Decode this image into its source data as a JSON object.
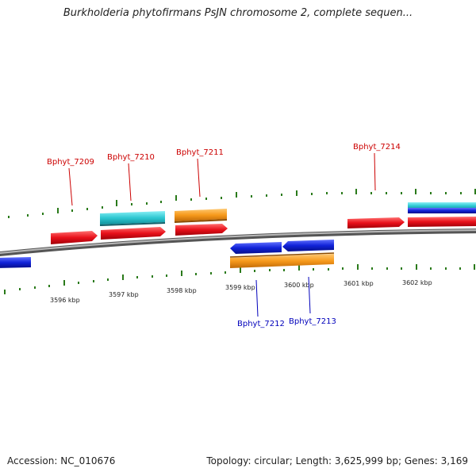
{
  "title": "Burkholderia phytofirmans PsJN chromosome 2, complete sequen...",
  "accession": "Accession: NC_010676",
  "summary": "Topology: circular; Length: 3,625,999 bp; Genes: 3,169",
  "scale": {
    "unit": "kbp",
    "ticks": [
      {
        "value": 3596,
        "label": "3596 kbp"
      },
      {
        "value": 3597,
        "label": "3597 kbp"
      },
      {
        "value": 3598,
        "label": "3598 kbp"
      },
      {
        "value": 3599,
        "label": "3599 kbp"
      },
      {
        "value": 3600,
        "label": "3600 kbp"
      },
      {
        "value": 3601,
        "label": "3601 kbp"
      },
      {
        "value": 3602,
        "label": "3602 kbp"
      }
    ]
  },
  "colors": {
    "red": "#e8101a",
    "orange": "#f79a1c",
    "cyan": "#2ec8d2",
    "blue": "#1022d8",
    "label_red": "#cc0000",
    "label_blue": "#0000bb",
    "tick_green": "#2a7a1a"
  },
  "gene_labels": {
    "bphyt_7209": "Bphyt_7209",
    "bphyt_7210": "Bphyt_7210",
    "bphyt_7211": "Bphyt_7211",
    "bphyt_7212": "Bphyt_7212",
    "bphyt_7213": "Bphyt_7213",
    "bphyt_7214": "Bphyt_7214"
  }
}
